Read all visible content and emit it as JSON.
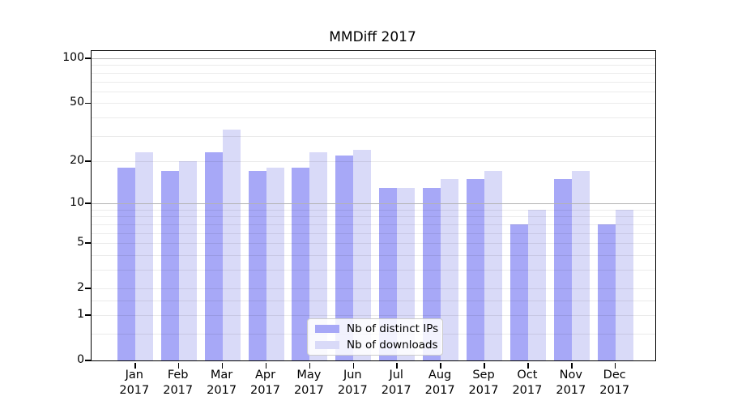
{
  "title": "MMDiff 2017",
  "chart_data": {
    "type": "bar",
    "title": "MMDiff 2017",
    "y_scale": "log1p",
    "ylim": [
      0,
      112
    ],
    "yticks": [
      0,
      1,
      2,
      5,
      10,
      20,
      50,
      100
    ],
    "minor_gridlines": [
      0.5,
      1.5,
      3,
      4,
      6,
      7,
      8,
      9,
      30,
      40,
      60,
      70,
      80,
      90
    ],
    "major_gridlines": [
      10,
      100
    ],
    "categories": [
      "Jan",
      "Feb",
      "Mar",
      "Apr",
      "May",
      "Jun",
      "Jul",
      "Aug",
      "Sep",
      "Oct",
      "Nov",
      "Dec"
    ],
    "year": "2017",
    "series": [
      {
        "name": "Nb of distinct IPs",
        "color": "#a7a8f7",
        "values": [
          18,
          17,
          23,
          17,
          18,
          22,
          13,
          13,
          15,
          7,
          15,
          7
        ]
      },
      {
        "name": "Nb of downloads",
        "color": "#d9daf8",
        "values": [
          23,
          20,
          33,
          18,
          23,
          24,
          13,
          15,
          17,
          9,
          17,
          9
        ]
      }
    ],
    "legend_position": "lower center",
    "grid": true,
    "colors": {
      "major_grid": "#b3b3b3",
      "minor_grid": "rgba(0,0,0,0.08)",
      "spine": "#000000"
    }
  }
}
